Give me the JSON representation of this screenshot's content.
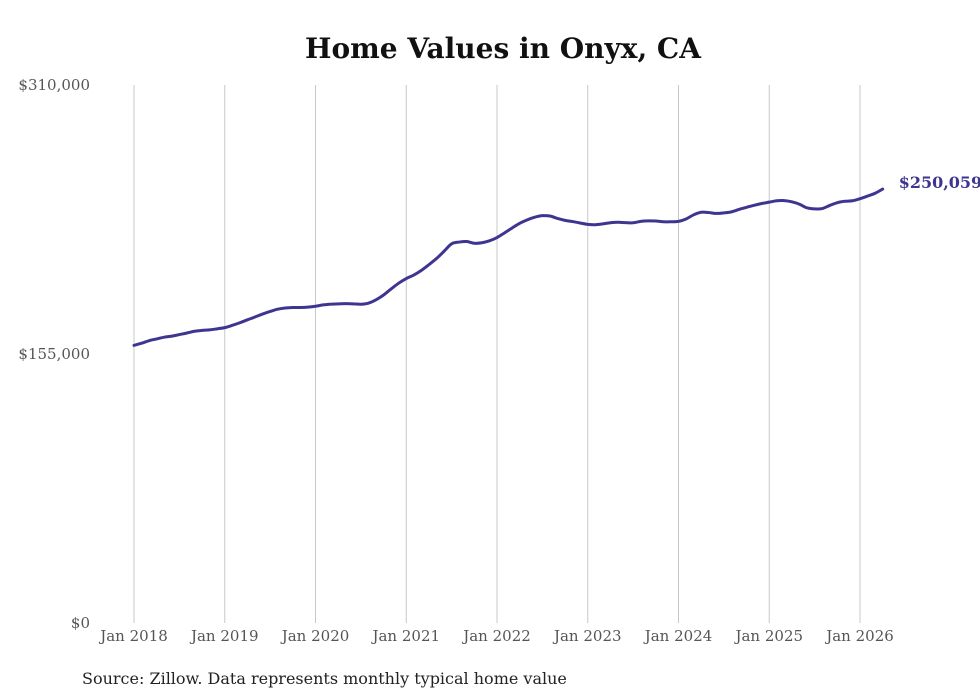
{
  "chart_data": {
    "type": "line",
    "title": "Home Values in Onyx, CA",
    "source": "Source: Zillow. Data represents monthly typical home value",
    "ylim": [
      0,
      310000
    ],
    "yticks": [
      0,
      155000,
      310000
    ],
    "ytick_labels": [
      "$0",
      "$155,000",
      "$310,000"
    ],
    "xticks": [
      {
        "label": "Jan 2018",
        "t": 0
      },
      {
        "label": "Jan 2019",
        "t": 12
      },
      {
        "label": "Jan 2020",
        "t": 24
      },
      {
        "label": "Jan 2021",
        "t": 36
      },
      {
        "label": "Jan 2022",
        "t": 48
      },
      {
        "label": "Jan 2023",
        "t": 60
      },
      {
        "label": "Jan 2024",
        "t": 72
      },
      {
        "label": "Jan 2025",
        "t": 84
      },
      {
        "label": "Jan 2026",
        "t": 96
      }
    ],
    "x_range": [
      0,
      99
    ],
    "line_color": "#3d3590",
    "grid_color": "#c8c8c8",
    "series": [
      {
        "name": "Typical home value",
        "end_label": "$250,059",
        "points": [
          [
            0,
            160000
          ],
          [
            1,
            161200
          ],
          [
            2,
            162700
          ],
          [
            3,
            163700
          ],
          [
            4,
            164700
          ],
          [
            5,
            165300
          ],
          [
            6,
            166200
          ],
          [
            7,
            167100
          ],
          [
            8,
            168100
          ],
          [
            9,
            168600
          ],
          [
            10,
            168900
          ],
          [
            11,
            169500
          ],
          [
            12,
            170200
          ],
          [
            13,
            171500
          ],
          [
            14,
            173000
          ],
          [
            15,
            174700
          ],
          [
            16,
            176300
          ],
          [
            17,
            178000
          ],
          [
            18,
            179500
          ],
          [
            19,
            180800
          ],
          [
            20,
            181500
          ],
          [
            21,
            181800
          ],
          [
            22,
            181800
          ],
          [
            23,
            182000
          ],
          [
            24,
            182500
          ],
          [
            25,
            183300
          ],
          [
            26,
            183700
          ],
          [
            27,
            183900
          ],
          [
            28,
            184000
          ],
          [
            29,
            183900
          ],
          [
            30,
            183700
          ],
          [
            31,
            184300
          ],
          [
            32,
            186200
          ],
          [
            33,
            189000
          ],
          [
            34,
            192500
          ],
          [
            35,
            195800
          ],
          [
            36,
            198500
          ],
          [
            37,
            200500
          ],
          [
            38,
            203200
          ],
          [
            39,
            206500
          ],
          [
            40,
            210000
          ],
          [
            41,
            214200
          ],
          [
            42,
            218500
          ],
          [
            43,
            219500
          ],
          [
            44,
            219800
          ],
          [
            45,
            218800
          ],
          [
            46,
            219100
          ],
          [
            47,
            220200
          ],
          [
            48,
            222100
          ],
          [
            49,
            224800
          ],
          [
            50,
            227600
          ],
          [
            51,
            230300
          ],
          [
            52,
            232300
          ],
          [
            53,
            233800
          ],
          [
            54,
            234700
          ],
          [
            55,
            234500
          ],
          [
            56,
            233100
          ],
          [
            57,
            232000
          ],
          [
            58,
            231300
          ],
          [
            59,
            230500
          ],
          [
            60,
            229700
          ],
          [
            61,
            229500
          ],
          [
            62,
            230000
          ],
          [
            63,
            230600
          ],
          [
            64,
            230900
          ],
          [
            65,
            230700
          ],
          [
            66,
            230600
          ],
          [
            67,
            231400
          ],
          [
            68,
            231700
          ],
          [
            69,
            231600
          ],
          [
            70,
            231200
          ],
          [
            71,
            231200
          ],
          [
            72,
            231400
          ],
          [
            73,
            232800
          ],
          [
            74,
            235200
          ],
          [
            75,
            236700
          ],
          [
            76,
            236500
          ],
          [
            77,
            236000
          ],
          [
            78,
            236300
          ],
          [
            79,
            236900
          ],
          [
            80,
            238300
          ],
          [
            81,
            239500
          ],
          [
            82,
            240700
          ],
          [
            83,
            241700
          ],
          [
            84,
            242500
          ],
          [
            85,
            243300
          ],
          [
            86,
            243400
          ],
          [
            87,
            242700
          ],
          [
            88,
            241300
          ],
          [
            89,
            239200
          ],
          [
            90,
            238600
          ],
          [
            91,
            238800
          ],
          [
            92,
            240600
          ],
          [
            93,
            242200
          ],
          [
            94,
            243000
          ],
          [
            95,
            243300
          ],
          [
            96,
            244500
          ],
          [
            97,
            246000
          ],
          [
            98,
            247600
          ],
          [
            99,
            250059
          ]
        ]
      }
    ]
  }
}
